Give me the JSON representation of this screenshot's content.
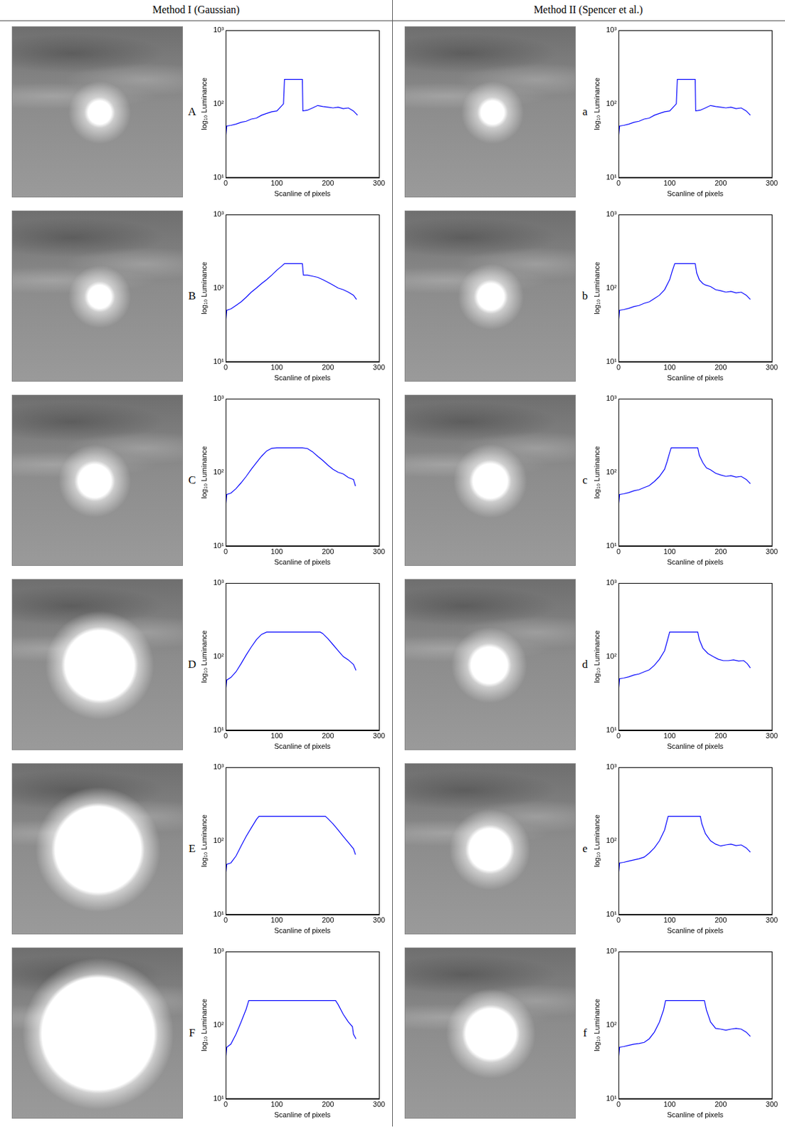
{
  "column_titles": [
    "Method I (Gaussian)",
    "Method II (Spencer et al.)"
  ],
  "chart_data": [
    {
      "type": "line",
      "title": "A",
      "x_label": "Scanline of pixels",
      "y_label": "log₁₀ Luminance",
      "color": "#0000ff",
      "log": "y",
      "grid": false,
      "xlim": [
        0,
        300
      ],
      "xticks": [
        0,
        100,
        200,
        300
      ],
      "ylim": [
        10,
        1000
      ],
      "yticks": [
        {
          "value": 10,
          "label": "10¹"
        },
        {
          "value": 100,
          "label": "10²"
        },
        {
          "value": 1000,
          "label": "10³"
        }
      ],
      "x": [
        0,
        2,
        10,
        20,
        30,
        40,
        50,
        60,
        70,
        80,
        90,
        100,
        110,
        113,
        115,
        150,
        151,
        160,
        170,
        180,
        190,
        200,
        210,
        220,
        230,
        240,
        250,
        258
      ],
      "values": [
        35,
        50,
        51,
        53,
        56,
        58,
        62,
        64,
        70,
        74,
        78,
        80,
        95,
        100,
        215,
        215,
        80,
        82,
        88,
        95,
        92,
        90,
        88,
        90,
        86,
        88,
        80,
        70
      ]
    },
    {
      "type": "line",
      "title": "a",
      "x_label": "Scanline of pixels",
      "y_label": "log₁₀ Luminance",
      "color": "#0000ff",
      "log": "y",
      "grid": false,
      "xlim": [
        0,
        300
      ],
      "xticks": [
        0,
        100,
        200,
        300
      ],
      "ylim": [
        10,
        1000
      ],
      "yticks": [
        {
          "value": 10,
          "label": "10¹"
        },
        {
          "value": 100,
          "label": "10²"
        },
        {
          "value": 1000,
          "label": "10³"
        }
      ],
      "x": [
        0,
        2,
        10,
        20,
        30,
        40,
        50,
        60,
        70,
        80,
        90,
        100,
        110,
        113,
        115,
        150,
        151,
        160,
        170,
        180,
        190,
        200,
        210,
        220,
        230,
        240,
        250,
        258
      ],
      "values": [
        35,
        50,
        51,
        53,
        56,
        58,
        62,
        64,
        70,
        74,
        78,
        80,
        95,
        100,
        215,
        215,
        80,
        82,
        88,
        95,
        92,
        90,
        88,
        90,
        86,
        88,
        80,
        70
      ]
    },
    {
      "type": "line",
      "title": "B",
      "x_label": "Scanline of pixels",
      "y_label": "log₁₀ Luminance",
      "color": "#0000ff",
      "log": "y",
      "grid": false,
      "xlim": [
        0,
        300
      ],
      "xticks": [
        0,
        100,
        200,
        300
      ],
      "ylim": [
        10,
        1000
      ],
      "yticks": [
        {
          "value": 10,
          "label": "10¹"
        },
        {
          "value": 100,
          "label": "10²"
        },
        {
          "value": 1000,
          "label": "10³"
        }
      ],
      "x": [
        0,
        2,
        10,
        20,
        30,
        40,
        50,
        60,
        70,
        80,
        90,
        100,
        110,
        115,
        150,
        152,
        160,
        170,
        180,
        190,
        200,
        210,
        220,
        230,
        240,
        250,
        256
      ],
      "values": [
        35,
        50,
        52,
        58,
        65,
        75,
        88,
        100,
        115,
        130,
        150,
        175,
        200,
        215,
        215,
        150,
        150,
        145,
        140,
        130,
        120,
        110,
        100,
        95,
        88,
        80,
        70
      ]
    },
    {
      "type": "line",
      "title": "b",
      "x_label": "Scanline of pixels",
      "y_label": "log₁₀ Luminance",
      "color": "#0000ff",
      "log": "y",
      "grid": false,
      "xlim": [
        0,
        300
      ],
      "xticks": [
        0,
        100,
        200,
        300
      ],
      "ylim": [
        10,
        1000
      ],
      "yticks": [
        {
          "value": 10,
          "label": "10¹"
        },
        {
          "value": 100,
          "label": "10²"
        },
        {
          "value": 1000,
          "label": "10³"
        }
      ],
      "x": [
        0,
        2,
        10,
        20,
        30,
        40,
        50,
        60,
        70,
        80,
        90,
        100,
        105,
        110,
        150,
        153,
        158,
        165,
        170,
        180,
        190,
        200,
        210,
        220,
        230,
        240,
        250,
        258
      ],
      "values": [
        35,
        50,
        51,
        53,
        56,
        58,
        62,
        65,
        72,
        80,
        95,
        130,
        170,
        215,
        215,
        160,
        130,
        115,
        110,
        105,
        95,
        92,
        88,
        90,
        86,
        88,
        80,
        70
      ]
    },
    {
      "type": "line",
      "title": "C",
      "x_label": "Scanline of pixels",
      "y_label": "log₁₀ Luminance",
      "color": "#0000ff",
      "log": "y",
      "grid": false,
      "xlim": [
        0,
        300
      ],
      "xticks": [
        0,
        100,
        200,
        300
      ],
      "ylim": [
        10,
        1000
      ],
      "yticks": [
        {
          "value": 10,
          "label": "10¹"
        },
        {
          "value": 100,
          "label": "10²"
        },
        {
          "value": 1000,
          "label": "10³"
        }
      ],
      "x": [
        0,
        2,
        10,
        20,
        30,
        40,
        50,
        60,
        70,
        80,
        90,
        100,
        150,
        160,
        170,
        180,
        190,
        200,
        210,
        220,
        230,
        240,
        250,
        254
      ],
      "values": [
        35,
        50,
        52,
        60,
        72,
        88,
        110,
        135,
        165,
        195,
        212,
        215,
        215,
        210,
        190,
        165,
        145,
        125,
        110,
        100,
        95,
        85,
        80,
        65
      ]
    },
    {
      "type": "line",
      "title": "c",
      "x_label": "Scanline of pixels",
      "y_label": "log₁₀ Luminance",
      "color": "#0000ff",
      "log": "y",
      "grid": false,
      "xlim": [
        0,
        300
      ],
      "xticks": [
        0,
        100,
        200,
        300
      ],
      "ylim": [
        10,
        1000
      ],
      "yticks": [
        {
          "value": 10,
          "label": "10¹"
        },
        {
          "value": 100,
          "label": "10²"
        },
        {
          "value": 1000,
          "label": "10³"
        }
      ],
      "x": [
        0,
        2,
        10,
        20,
        30,
        40,
        50,
        60,
        70,
        80,
        90,
        95,
        100,
        103,
        155,
        158,
        165,
        172,
        180,
        190,
        200,
        210,
        220,
        230,
        240,
        250,
        258
      ],
      "values": [
        35,
        50,
        51,
        53,
        56,
        58,
        62,
        66,
        75,
        88,
        110,
        140,
        185,
        215,
        215,
        170,
        135,
        115,
        108,
        97,
        92,
        88,
        90,
        86,
        88,
        80,
        70
      ]
    },
    {
      "type": "line",
      "title": "D",
      "x_label": "Scanline of pixels",
      "y_label": "log₁₀ Luminance",
      "color": "#0000ff",
      "log": "y",
      "grid": false,
      "xlim": [
        0,
        300
      ],
      "xticks": [
        0,
        100,
        200,
        300
      ],
      "ylim": [
        10,
        1000
      ],
      "yticks": [
        {
          "value": 10,
          "label": "10¹"
        },
        {
          "value": 100,
          "label": "10²"
        },
        {
          "value": 1000,
          "label": "10³"
        }
      ],
      "x": [
        0,
        2,
        10,
        20,
        30,
        40,
        50,
        60,
        70,
        80,
        185,
        190,
        200,
        210,
        220,
        230,
        240,
        250,
        255
      ],
      "values": [
        35,
        48,
        52,
        62,
        80,
        105,
        135,
        170,
        200,
        215,
        215,
        205,
        175,
        145,
        120,
        100,
        90,
        78,
        65
      ]
    },
    {
      "type": "line",
      "title": "d",
      "x_label": "Scanline of pixels",
      "y_label": "log₁₀ Luminance",
      "color": "#0000ff",
      "log": "y",
      "grid": false,
      "xlim": [
        0,
        300
      ],
      "xticks": [
        0,
        100,
        200,
        300
      ],
      "ylim": [
        10,
        1000
      ],
      "yticks": [
        {
          "value": 10,
          "label": "10¹"
        },
        {
          "value": 100,
          "label": "10²"
        },
        {
          "value": 1000,
          "label": "10³"
        }
      ],
      "x": [
        0,
        2,
        10,
        20,
        30,
        40,
        50,
        60,
        70,
        80,
        90,
        95,
        100,
        155,
        158,
        165,
        175,
        185,
        195,
        205,
        215,
        225,
        235,
        245,
        252,
        258
      ],
      "values": [
        35,
        50,
        51,
        53,
        56,
        58,
        62,
        66,
        76,
        92,
        120,
        160,
        215,
        215,
        170,
        130,
        110,
        100,
        92,
        88,
        88,
        90,
        87,
        88,
        80,
        70
      ]
    },
    {
      "type": "line",
      "title": "E",
      "x_label": "Scanline of pixels",
      "y_label": "log₁₀ Luminance",
      "color": "#0000ff",
      "log": "y",
      "grid": false,
      "xlim": [
        0,
        300
      ],
      "xticks": [
        0,
        100,
        200,
        300
      ],
      "ylim": [
        10,
        1000
      ],
      "yticks": [
        {
          "value": 10,
          "label": "10¹"
        },
        {
          "value": 100,
          "label": "10²"
        },
        {
          "value": 1000,
          "label": "10³"
        }
      ],
      "x": [
        0,
        2,
        10,
        20,
        30,
        40,
        50,
        60,
        65,
        195,
        200,
        210,
        220,
        230,
        240,
        250,
        254
      ],
      "values": [
        35,
        48,
        50,
        62,
        85,
        115,
        150,
        195,
        215,
        215,
        200,
        170,
        140,
        115,
        95,
        78,
        65
      ]
    },
    {
      "type": "line",
      "title": "e",
      "x_label": "Scanline of pixels",
      "y_label": "log₁₀ Luminance",
      "color": "#0000ff",
      "log": "y",
      "grid": false,
      "xlim": [
        0,
        300
      ],
      "xticks": [
        0,
        100,
        200,
        300
      ],
      "ylim": [
        10,
        1000
      ],
      "yticks": [
        {
          "value": 10,
          "label": "10¹"
        },
        {
          "value": 100,
          "label": "10²"
        },
        {
          "value": 1000,
          "label": "10³"
        }
      ],
      "x": [
        0,
        2,
        10,
        20,
        30,
        40,
        50,
        60,
        70,
        80,
        90,
        97,
        160,
        163,
        170,
        180,
        190,
        200,
        210,
        220,
        230,
        240,
        250,
        258
      ],
      "values": [
        35,
        50,
        51,
        53,
        55,
        57,
        60,
        68,
        80,
        100,
        140,
        215,
        215,
        170,
        125,
        100,
        90,
        85,
        88,
        90,
        86,
        88,
        80,
        70
      ]
    },
    {
      "type": "line",
      "title": "F",
      "x_label": "Scanline of pixels",
      "y_label": "log₁₀ Luminance",
      "color": "#0000ff",
      "log": "y",
      "grid": false,
      "xlim": [
        0,
        300
      ],
      "xticks": [
        0,
        100,
        200,
        300
      ],
      "ylim": [
        10,
        1000
      ],
      "yticks": [
        {
          "value": 10,
          "label": "10¹"
        },
        {
          "value": 100,
          "label": "10²"
        },
        {
          "value": 1000,
          "label": "10³"
        }
      ],
      "x": [
        0,
        2,
        10,
        20,
        30,
        40,
        45,
        215,
        220,
        230,
        240,
        248,
        250,
        255
      ],
      "values": [
        35,
        50,
        55,
        75,
        110,
        165,
        215,
        215,
        190,
        140,
        110,
        95,
        75,
        65
      ]
    },
    {
      "type": "line",
      "title": "f",
      "x_label": "Scanline of pixels",
      "y_label": "log₁₀ Luminance",
      "color": "#0000ff",
      "log": "y",
      "grid": false,
      "xlim": [
        0,
        300
      ],
      "xticks": [
        0,
        100,
        200,
        300
      ],
      "ylim": [
        10,
        1000
      ],
      "yticks": [
        {
          "value": 10,
          "label": "10¹"
        },
        {
          "value": 100,
          "label": "10²"
        },
        {
          "value": 1000,
          "label": "10³"
        }
      ],
      "x": [
        0,
        2,
        10,
        20,
        30,
        40,
        50,
        60,
        70,
        80,
        88,
        92,
        168,
        172,
        180,
        190,
        200,
        210,
        220,
        230,
        240,
        250,
        258
      ],
      "values": [
        35,
        50,
        51,
        53,
        55,
        56,
        58,
        65,
        80,
        110,
        160,
        215,
        215,
        160,
        110,
        90,
        88,
        85,
        88,
        90,
        88,
        80,
        70
      ]
    }
  ]
}
